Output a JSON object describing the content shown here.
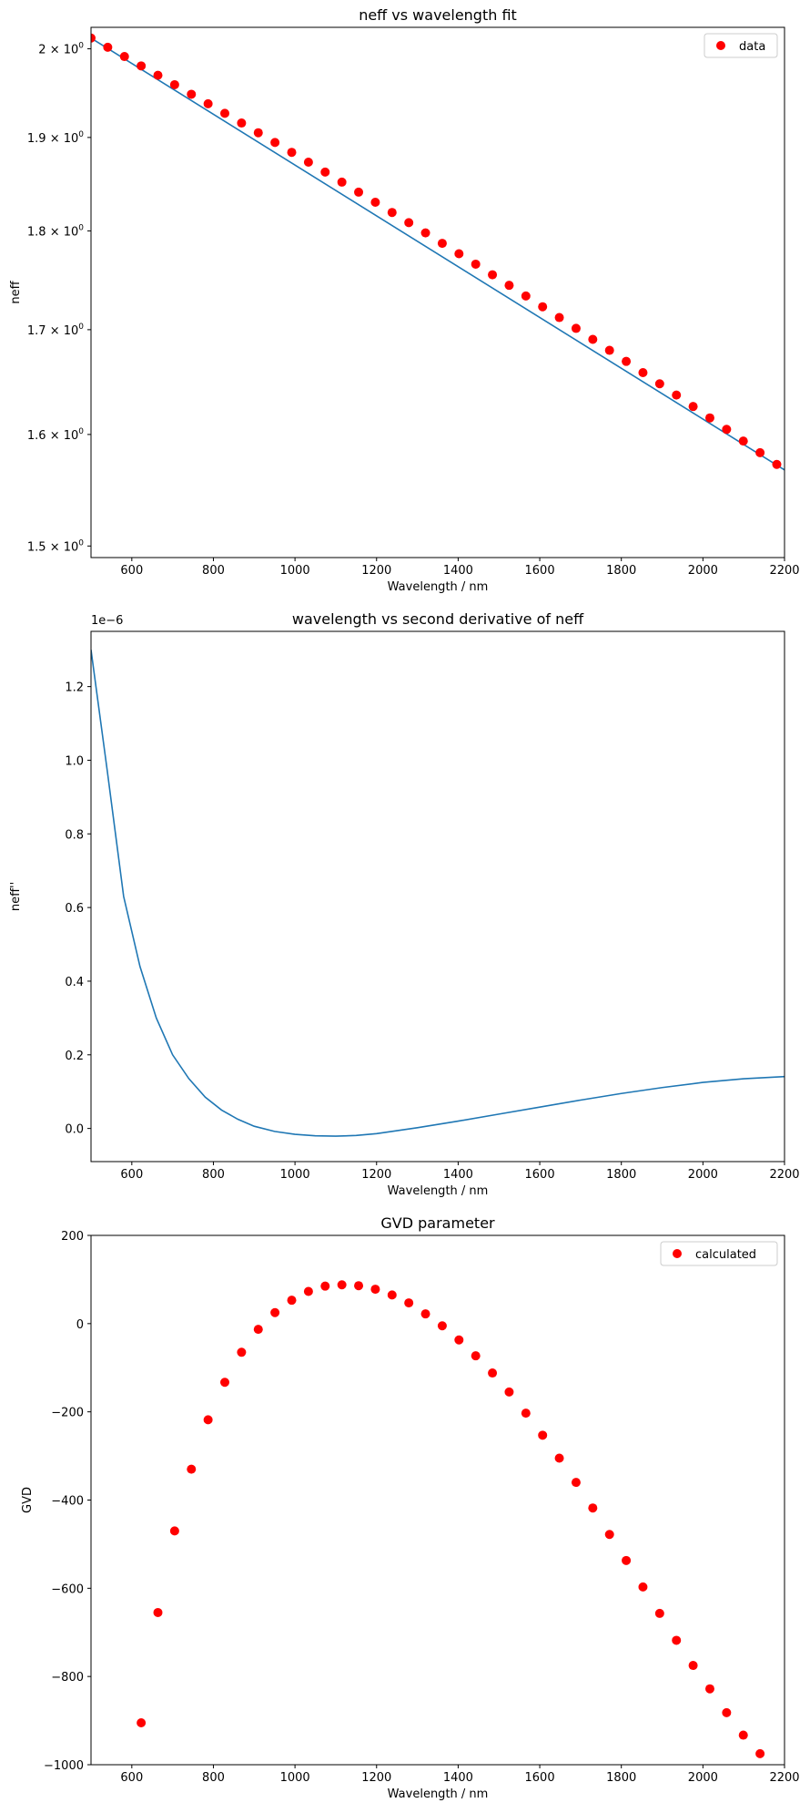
{
  "chart_data": [
    {
      "type": "line",
      "title": "neff vs wavelength fit",
      "xlabel": "Wavelength / nm",
      "ylabel": "neff",
      "xlim": [
        500,
        2200
      ],
      "ylim": [
        1.49,
        2.025
      ],
      "yscale": "log",
      "grid": false,
      "legend_position": "top-right",
      "x_ticks": [
        600,
        800,
        1000,
        1200,
        1400,
        1600,
        1800,
        2000,
        2200
      ],
      "x_tick_labels": [
        "600",
        "800",
        "1000",
        "1200",
        "1400",
        "1600",
        "1800",
        "2000",
        "2200"
      ],
      "y_ticks": [
        {
          "value": 2.0,
          "base": "2",
          "exp": "0"
        },
        {
          "value": 1.9,
          "base": "1.9",
          "exp": "0"
        },
        {
          "value": 1.8,
          "base": "1.8",
          "exp": "0"
        },
        {
          "value": 1.7,
          "base": "1.7",
          "exp": "0"
        },
        {
          "value": 1.6,
          "base": "1.6",
          "exp": "0"
        },
        {
          "value": 1.5,
          "base": "1.5",
          "exp": "0"
        }
      ],
      "series": [
        {
          "kind": "line",
          "color": "#1f77b4",
          "x": [
            500,
            2200
          ],
          "y": [
            2.0125,
            1.5675
          ]
        },
        {
          "kind": "scatter",
          "name": "data",
          "color": "#ff0000",
          "x": [
            500,
            541,
            582,
            623,
            664,
            705,
            746,
            787,
            828,
            869,
            910,
            951,
            992,
            1033,
            1074,
            1115,
            1156,
            1197,
            1238,
            1279,
            1320,
            1361,
            1402,
            1443,
            1484,
            1525,
            1566,
            1607,
            1648,
            1689,
            1730,
            1771,
            1812,
            1853,
            1894,
            1935,
            1976,
            2017,
            2058,
            2099,
            2140,
            2181
          ],
          "y": [
            2.0125,
            2.0018,
            1.9911,
            1.9803,
            1.9696,
            1.9589,
            1.9481,
            1.9374,
            1.9267,
            1.9159,
            1.9052,
            1.8945,
            1.8837,
            1.873,
            1.8623,
            1.8515,
            1.8408,
            1.8301,
            1.8193,
            1.8086,
            1.7979,
            1.7871,
            1.7764,
            1.7657,
            1.7549,
            1.7442,
            1.7335,
            1.7227,
            1.712,
            1.7013,
            1.6905,
            1.6798,
            1.6691,
            1.6583,
            1.6476,
            1.6369,
            1.6261,
            1.6154,
            1.6047,
            1.5939,
            1.5832,
            1.5725
          ]
        }
      ]
    },
    {
      "type": "line",
      "title": "wavelength vs second derivative of neff",
      "xlabel": "Wavelength / nm",
      "ylabel": "neff''",
      "offset_text": "1e−6",
      "xlim": [
        500,
        2200
      ],
      "ylim": [
        -0.09,
        1.35
      ],
      "grid": false,
      "x_ticks": [
        600,
        800,
        1000,
        1200,
        1400,
        1600,
        1800,
        2000,
        2200
      ],
      "x_tick_labels": [
        "600",
        "800",
        "1000",
        "1200",
        "1400",
        "1600",
        "1800",
        "2000",
        "2200"
      ],
      "y_ticks": [
        0.0,
        0.2,
        0.4,
        0.6,
        0.8,
        1.0,
        1.2
      ],
      "y_tick_labels": [
        "0.0",
        "0.2",
        "0.4",
        "0.6",
        "0.8",
        "1.0",
        "1.2"
      ],
      "series": [
        {
          "kind": "line",
          "color": "#1f77b4",
          "x": [
            500,
            540,
            580,
            620,
            660,
            700,
            740,
            780,
            820,
            860,
            900,
            950,
            1000,
            1050,
            1100,
            1150,
            1200,
            1300,
            1400,
            1500,
            1600,
            1700,
            1800,
            1900,
            2000,
            2100,
            2200
          ],
          "y": [
            1.3,
            0.97,
            0.63,
            0.44,
            0.3,
            0.2,
            0.135,
            0.085,
            0.05,
            0.025,
            0.006,
            -0.008,
            -0.016,
            -0.02,
            -0.021,
            -0.019,
            -0.014,
            0.002,
            0.02,
            0.039,
            0.058,
            0.077,
            0.095,
            0.111,
            0.125,
            0.135,
            0.141
          ]
        }
      ]
    },
    {
      "type": "scatter",
      "title": "GVD parameter",
      "xlabel": "Wavelength / nm",
      "ylabel": "GVD",
      "xlim": [
        500,
        2200
      ],
      "ylim": [
        -1000,
        200
      ],
      "grid": false,
      "legend_position": "top-right",
      "x_ticks": [
        600,
        800,
        1000,
        1200,
        1400,
        1600,
        1800,
        2000,
        2200
      ],
      "x_tick_labels": [
        "600",
        "800",
        "1000",
        "1200",
        "1400",
        "1600",
        "1800",
        "2000",
        "2200"
      ],
      "y_ticks": [
        200,
        0,
        -200,
        -400,
        -600,
        -800,
        -1000
      ],
      "y_tick_labels": [
        "200",
        "0",
        "−200",
        "−400",
        "−600",
        "−800",
        "−1000"
      ],
      "series": [
        {
          "kind": "scatter",
          "name": "calculated",
          "color": "#ff0000",
          "x": [
            623,
            664,
            705,
            746,
            787,
            828,
            869,
            910,
            951,
            992,
            1033,
            1074,
            1115,
            1156,
            1197,
            1238,
            1279,
            1320,
            1361,
            1402,
            1443,
            1484,
            1525,
            1566,
            1607,
            1648,
            1689,
            1730,
            1771,
            1812,
            1853,
            1894,
            1935,
            1976,
            2017,
            2058,
            2099,
            2140
          ],
          "y": [
            -905,
            -655,
            -470,
            -330,
            -218,
            -133,
            -65,
            -13,
            25,
            53,
            73,
            85,
            88,
            86,
            78,
            65,
            47,
            22,
            -5,
            -37,
            -73,
            -112,
            -155,
            -203,
            -253,
            -305,
            -360,
            -418,
            -478,
            -537,
            -597,
            -657,
            -718,
            -775,
            -828,
            -882,
            -933,
            -975
          ]
        }
      ]
    }
  ]
}
